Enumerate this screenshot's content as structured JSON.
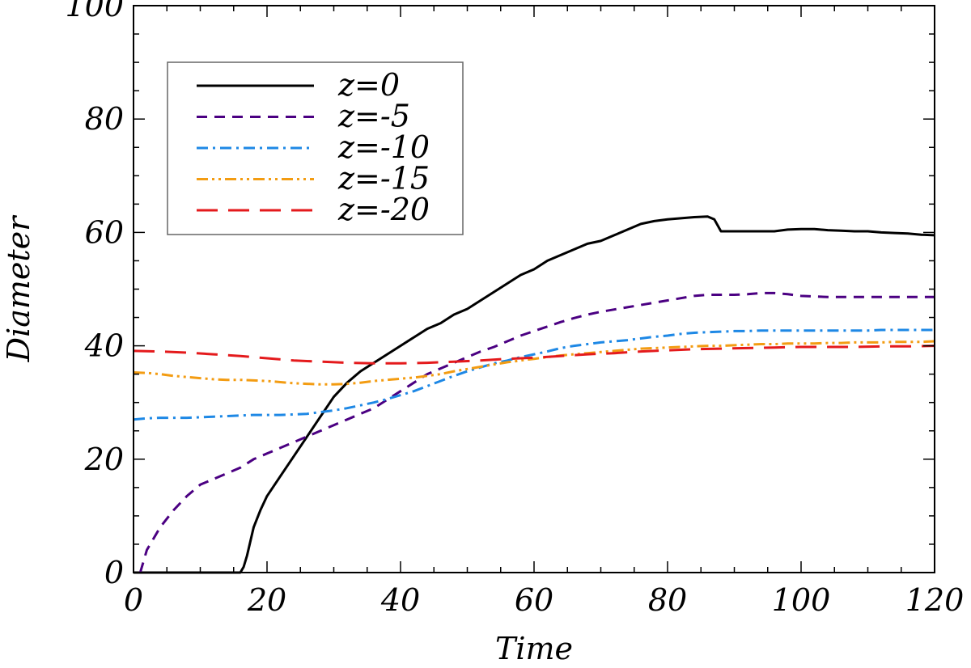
{
  "chart_data": {
    "type": "line",
    "title": "",
    "xlabel": "Time",
    "ylabel": "Diameter",
    "xlim": [
      0,
      120
    ],
    "ylim": [
      0,
      100
    ],
    "xticks": [
      0,
      20,
      40,
      60,
      80,
      100,
      120
    ],
    "yticks": [
      0,
      20,
      40,
      60,
      80,
      100
    ],
    "xtick_labels": [
      "0",
      "20",
      "40",
      "60",
      "80",
      "100",
      "120"
    ],
    "ytick_labels": [
      "0",
      "20",
      "40",
      "60",
      "80",
      "100"
    ],
    "grid": false,
    "legend_position": "top-left",
    "series": [
      {
        "name": "z=0",
        "color": "#000000",
        "dash": "solid",
        "points": [
          [
            0,
            0
          ],
          [
            16,
            0
          ],
          [
            16.5,
            1
          ],
          [
            17,
            3
          ],
          [
            18,
            8
          ],
          [
            19,
            11
          ],
          [
            20,
            13.5
          ],
          [
            22,
            17
          ],
          [
            24,
            20.5
          ],
          [
            26,
            24
          ],
          [
            28,
            27.5
          ],
          [
            30,
            31
          ],
          [
            32,
            33.5
          ],
          [
            34,
            35.5
          ],
          [
            36,
            37
          ],
          [
            38,
            38.5
          ],
          [
            40,
            40
          ],
          [
            42,
            41.5
          ],
          [
            44,
            43
          ],
          [
            46,
            44
          ],
          [
            48,
            45.5
          ],
          [
            50,
            46.5
          ],
          [
            52,
            48
          ],
          [
            54,
            49.5
          ],
          [
            56,
            51
          ],
          [
            58,
            52.5
          ],
          [
            60,
            53.5
          ],
          [
            62,
            55
          ],
          [
            64,
            56
          ],
          [
            66,
            57
          ],
          [
            68,
            58
          ],
          [
            70,
            58.5
          ],
          [
            72,
            59.5
          ],
          [
            74,
            60.5
          ],
          [
            76,
            61.5
          ],
          [
            78,
            62
          ],
          [
            80,
            62.3
          ],
          [
            82,
            62.5
          ],
          [
            84,
            62.7
          ],
          [
            86,
            62.8
          ],
          [
            87,
            62.3
          ],
          [
            88,
            60.2
          ],
          [
            90,
            60.2
          ],
          [
            92,
            60.2
          ],
          [
            94,
            60.2
          ],
          [
            96,
            60.2
          ],
          [
            98,
            60.5
          ],
          [
            100,
            60.6
          ],
          [
            102,
            60.6
          ],
          [
            104,
            60.4
          ],
          [
            106,
            60.3
          ],
          [
            108,
            60.2
          ],
          [
            110,
            60.2
          ],
          [
            112,
            60
          ],
          [
            114,
            59.9
          ],
          [
            116,
            59.8
          ],
          [
            118,
            59.6
          ],
          [
            120,
            59.5
          ]
        ]
      },
      {
        "name": "z=-5",
        "color": "#4B0082",
        "dash": "dashed",
        "points": [
          [
            1,
            0
          ],
          [
            2,
            4
          ],
          [
            4,
            8
          ],
          [
            6,
            11
          ],
          [
            8,
            13.5
          ],
          [
            10,
            15.5
          ],
          [
            12,
            16.5
          ],
          [
            14,
            17.5
          ],
          [
            16,
            18.5
          ],
          [
            18,
            20
          ],
          [
            20,
            21
          ],
          [
            22,
            22
          ],
          [
            24,
            23
          ],
          [
            26,
            24
          ],
          [
            28,
            25
          ],
          [
            30,
            26
          ],
          [
            32,
            27
          ],
          [
            34,
            28
          ],
          [
            36,
            29
          ],
          [
            38,
            30.5
          ],
          [
            40,
            32
          ],
          [
            42,
            33.5
          ],
          [
            44,
            35
          ],
          [
            46,
            36
          ],
          [
            48,
            37
          ],
          [
            50,
            38
          ],
          [
            52,
            39
          ],
          [
            54,
            39.8
          ],
          [
            56,
            40.8
          ],
          [
            58,
            41.8
          ],
          [
            60,
            42.6
          ],
          [
            62,
            43.4
          ],
          [
            64,
            44.2
          ],
          [
            66,
            44.9
          ],
          [
            68,
            45.5
          ],
          [
            70,
            46
          ],
          [
            72,
            46.4
          ],
          [
            74,
            46.8
          ],
          [
            76,
            47.2
          ],
          [
            78,
            47.6
          ],
          [
            80,
            48
          ],
          [
            82,
            48.4
          ],
          [
            84,
            48.8
          ],
          [
            86,
            49
          ],
          [
            88,
            49
          ],
          [
            90,
            49
          ],
          [
            92,
            49.1
          ],
          [
            94,
            49.3
          ],
          [
            96,
            49.3
          ],
          [
            98,
            49.1
          ],
          [
            100,
            48.8
          ],
          [
            102,
            48.7
          ],
          [
            104,
            48.6
          ],
          [
            106,
            48.6
          ],
          [
            108,
            48.6
          ],
          [
            110,
            48.6
          ],
          [
            112,
            48.6
          ],
          [
            114,
            48.6
          ],
          [
            116,
            48.6
          ],
          [
            118,
            48.6
          ],
          [
            120,
            48.6
          ]
        ]
      },
      {
        "name": "z=-10",
        "color": "#1E88E5",
        "dash": "dashdot",
        "points": [
          [
            0,
            27
          ],
          [
            2,
            27.2
          ],
          [
            4,
            27.3
          ],
          [
            6,
            27.3
          ],
          [
            8,
            27.3
          ],
          [
            10,
            27.4
          ],
          [
            12,
            27.5
          ],
          [
            14,
            27.6
          ],
          [
            16,
            27.7
          ],
          [
            18,
            27.8
          ],
          [
            20,
            27.8
          ],
          [
            22,
            27.8
          ],
          [
            24,
            27.9
          ],
          [
            26,
            28
          ],
          [
            28,
            28.3
          ],
          [
            30,
            28.6
          ],
          [
            32,
            29
          ],
          [
            34,
            29.5
          ],
          [
            36,
            30
          ],
          [
            38,
            30.6
          ],
          [
            40,
            31.3
          ],
          [
            42,
            32
          ],
          [
            44,
            32.9
          ],
          [
            46,
            33.8
          ],
          [
            48,
            34.7
          ],
          [
            50,
            35.5
          ],
          [
            52,
            36.2
          ],
          [
            54,
            36.9
          ],
          [
            56,
            37.4
          ],
          [
            58,
            38
          ],
          [
            60,
            38.5
          ],
          [
            62,
            39
          ],
          [
            64,
            39.6
          ],
          [
            66,
            40
          ],
          [
            68,
            40.3
          ],
          [
            70,
            40.6
          ],
          [
            72,
            40.8
          ],
          [
            74,
            41
          ],
          [
            76,
            41.3
          ],
          [
            78,
            41.6
          ],
          [
            80,
            41.8
          ],
          [
            82,
            42.1
          ],
          [
            84,
            42.3
          ],
          [
            86,
            42.4
          ],
          [
            88,
            42.5
          ],
          [
            90,
            42.6
          ],
          [
            92,
            42.6
          ],
          [
            94,
            42.7
          ],
          [
            96,
            42.7
          ],
          [
            98,
            42.7
          ],
          [
            100,
            42.7
          ],
          [
            102,
            42.7
          ],
          [
            104,
            42.7
          ],
          [
            106,
            42.7
          ],
          [
            108,
            42.7
          ],
          [
            110,
            42.7
          ],
          [
            112,
            42.8
          ],
          [
            114,
            42.8
          ],
          [
            116,
            42.8
          ],
          [
            118,
            42.8
          ],
          [
            120,
            42.8
          ]
        ]
      },
      {
        "name": "z=-15",
        "color": "#F39C12",
        "dash": "dashdotdot",
        "points": [
          [
            0,
            35.3
          ],
          [
            2,
            35.2
          ],
          [
            4,
            35
          ],
          [
            6,
            34.7
          ],
          [
            8,
            34.5
          ],
          [
            10,
            34.3
          ],
          [
            12,
            34.1
          ],
          [
            14,
            34
          ],
          [
            16,
            34
          ],
          [
            18,
            33.9
          ],
          [
            20,
            33.8
          ],
          [
            22,
            33.6
          ],
          [
            24,
            33.4
          ],
          [
            26,
            33.3
          ],
          [
            28,
            33.2
          ],
          [
            30,
            33.2
          ],
          [
            32,
            33.3
          ],
          [
            34,
            33.5
          ],
          [
            36,
            33.8
          ],
          [
            38,
            34
          ],
          [
            40,
            34.2
          ],
          [
            42,
            34.4
          ],
          [
            44,
            34.7
          ],
          [
            46,
            35
          ],
          [
            48,
            35.5
          ],
          [
            50,
            35.9
          ],
          [
            52,
            36.3
          ],
          [
            54,
            36.7
          ],
          [
            56,
            37.1
          ],
          [
            58,
            37.4
          ],
          [
            60,
            37.7
          ],
          [
            62,
            38
          ],
          [
            64,
            38.3
          ],
          [
            66,
            38.5
          ],
          [
            68,
            38.7
          ],
          [
            70,
            38.9
          ],
          [
            72,
            39.1
          ],
          [
            74,
            39.3
          ],
          [
            76,
            39.5
          ],
          [
            78,
            39.6
          ],
          [
            80,
            39.7
          ],
          [
            82,
            39.8
          ],
          [
            84,
            39.9
          ],
          [
            86,
            40
          ],
          [
            88,
            40
          ],
          [
            90,
            40.1
          ],
          [
            92,
            40.2
          ],
          [
            94,
            40.3
          ],
          [
            96,
            40.3
          ],
          [
            98,
            40.4
          ],
          [
            100,
            40.4
          ],
          [
            102,
            40.4
          ],
          [
            104,
            40.5
          ],
          [
            106,
            40.5
          ],
          [
            108,
            40.6
          ],
          [
            110,
            40.6
          ],
          [
            112,
            40.6
          ],
          [
            114,
            40.7
          ],
          [
            116,
            40.7
          ],
          [
            118,
            40.7
          ],
          [
            120,
            40.8
          ]
        ]
      },
      {
        "name": "z=-20",
        "color": "#E41A1C",
        "dash": "longdash",
        "points": [
          [
            0,
            39.1
          ],
          [
            4,
            39
          ],
          [
            8,
            38.8
          ],
          [
            12,
            38.5
          ],
          [
            16,
            38.2
          ],
          [
            20,
            37.8
          ],
          [
            24,
            37.4
          ],
          [
            28,
            37.2
          ],
          [
            32,
            37
          ],
          [
            36,
            36.9
          ],
          [
            40,
            36.9
          ],
          [
            44,
            37
          ],
          [
            48,
            37.2
          ],
          [
            52,
            37.4
          ],
          [
            56,
            37.7
          ],
          [
            60,
            37.9
          ],
          [
            64,
            38.2
          ],
          [
            68,
            38.5
          ],
          [
            72,
            38.7
          ],
          [
            76,
            39
          ],
          [
            80,
            39.2
          ],
          [
            84,
            39.4
          ],
          [
            88,
            39.5
          ],
          [
            92,
            39.6
          ],
          [
            96,
            39.7
          ],
          [
            100,
            39.8
          ],
          [
            104,
            39.8
          ],
          [
            108,
            39.8
          ],
          [
            112,
            39.9
          ],
          [
            116,
            39.9
          ],
          [
            120,
            40
          ]
        ]
      }
    ]
  }
}
